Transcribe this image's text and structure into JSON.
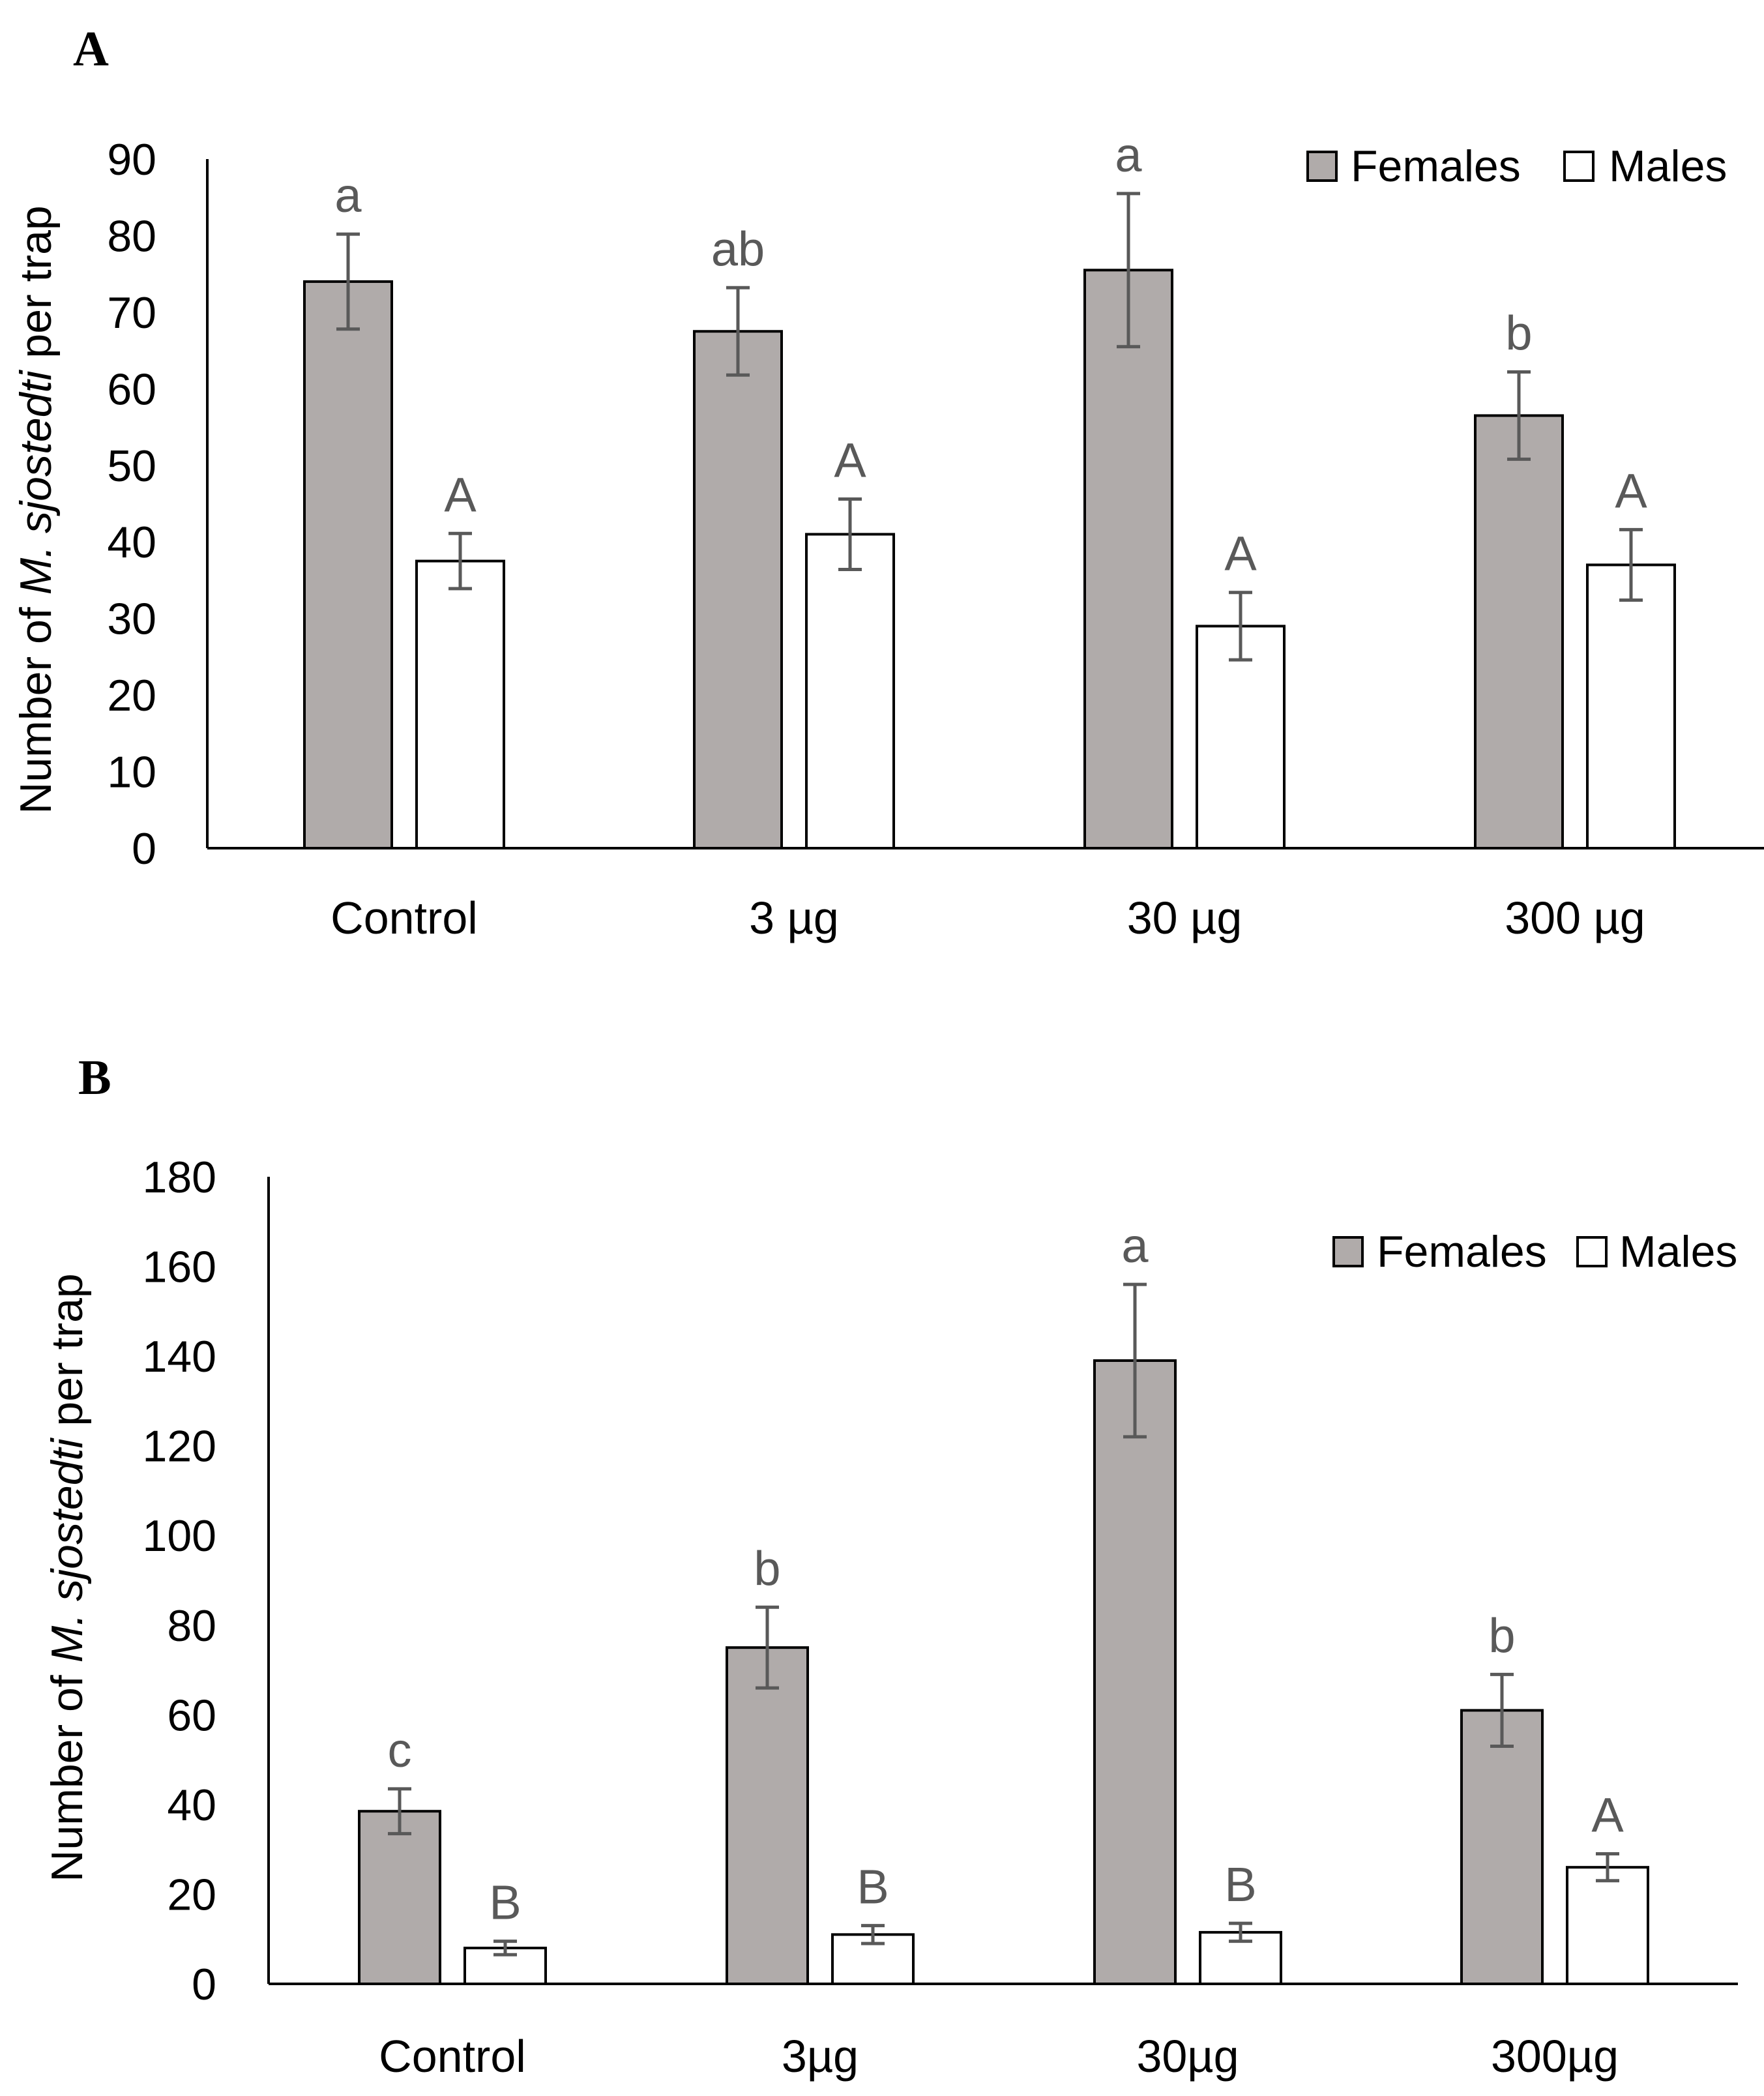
{
  "colors": {
    "females": "#b0abaa",
    "males": "#ffffff",
    "error_bar": "#595959",
    "axis": "#000000",
    "significance": "#595959"
  },
  "chart_data": [
    {
      "type": "bar",
      "panel_label": "A",
      "ylabel_prefix": "Number of ",
      "ylabel_italic": "M. sjostedti",
      "ylabel_suffix": " per trap",
      "ylim": [
        0,
        90
      ],
      "yticks": [
        "0",
        "10",
        "20",
        "30",
        "40",
        "50",
        "60",
        "70",
        "80",
        "90"
      ],
      "categories": [
        "Control",
        "3 µg",
        "30 µg",
        "300 µg"
      ],
      "legend": [
        "Females",
        "Males"
      ],
      "series": [
        {
          "name": "Females",
          "values": [
            74,
            67.5,
            75.5,
            56.5
          ],
          "errors": [
            6.2,
            5.7,
            10,
            5.7
          ],
          "letters": [
            "a",
            "ab",
            "a",
            "b"
          ]
        },
        {
          "name": "Males",
          "values": [
            37.5,
            41,
            29,
            37
          ],
          "errors": [
            3.6,
            4.6,
            4.4,
            4.6
          ],
          "letters": [
            "A",
            "A",
            "A",
            "A"
          ]
        }
      ]
    },
    {
      "type": "bar",
      "panel_label": "B",
      "ylabel_prefix": "Number of ",
      "ylabel_italic": "M. sjostedti",
      "ylabel_suffix": " per trap",
      "ylim": [
        0,
        180
      ],
      "yticks": [
        "0",
        "20",
        "40",
        "60",
        "80",
        "100",
        "120",
        "140",
        "160",
        "180"
      ],
      "categories": [
        "Control",
        "3µg",
        "30µg",
        "300µg"
      ],
      "legend": [
        "Females",
        "Males"
      ],
      "series": [
        {
          "name": "Females",
          "values": [
            38.5,
            75,
            139,
            61
          ],
          "errors": [
            5,
            9,
            17,
            8
          ],
          "letters": [
            "c",
            "b",
            "a",
            "b"
          ]
        },
        {
          "name": "Males",
          "values": [
            8,
            11,
            11.5,
            26
          ],
          "errors": [
            1.5,
            2,
            2,
            3
          ],
          "letters": [
            "B",
            "B",
            "B",
            "A"
          ]
        }
      ]
    }
  ]
}
